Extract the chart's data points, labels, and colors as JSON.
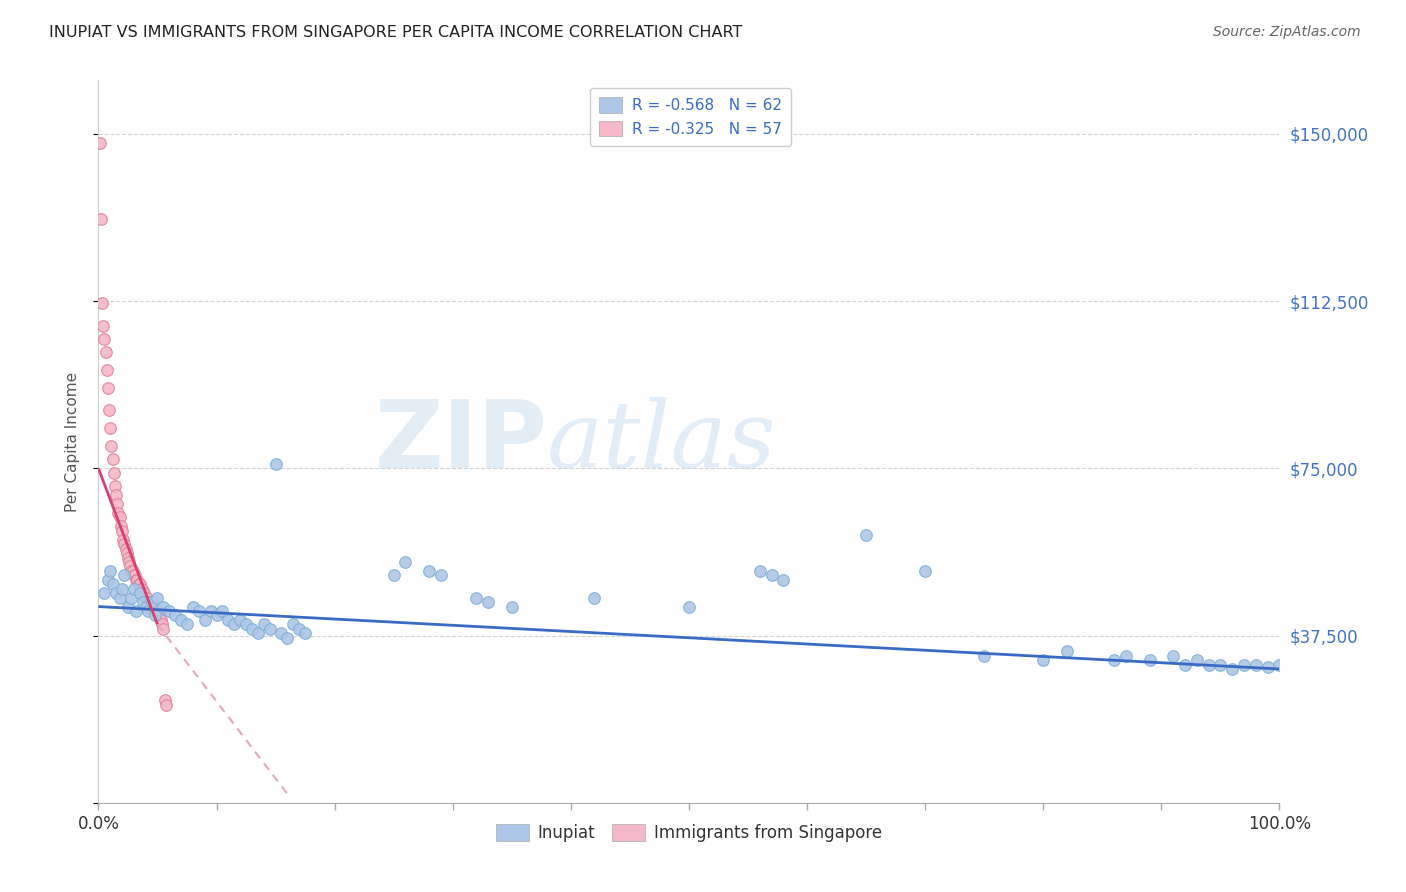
{
  "title": "INUPIAT VS IMMIGRANTS FROM SINGAPORE PER CAPITA INCOME CORRELATION CHART",
  "source": "Source: ZipAtlas.com",
  "ylabel": "Per Capita Income",
  "xlim": [
    0,
    1.0
  ],
  "ylim": [
    0,
    162000
  ],
  "yticks": [
    0,
    37500,
    75000,
    112500,
    150000
  ],
  "ytick_labels": [
    "",
    "$37,500",
    "$75,000",
    "$112,500",
    "$150,000"
  ],
  "xticks": [
    0.0,
    0.1,
    0.2,
    0.3,
    0.4,
    0.5,
    0.6,
    0.7,
    0.8,
    0.9,
    1.0
  ],
  "xtick_labels": [
    "0.0%",
    "",
    "",
    "",
    "",
    "",
    "",
    "",
    "",
    "",
    "100.0%"
  ],
  "inupiat_scatter": [
    [
      0.005,
      47000
    ],
    [
      0.008,
      50000
    ],
    [
      0.01,
      52000
    ],
    [
      0.012,
      49000
    ],
    [
      0.015,
      47000
    ],
    [
      0.018,
      46000
    ],
    [
      0.02,
      48000
    ],
    [
      0.022,
      51000
    ],
    [
      0.025,
      44000
    ],
    [
      0.028,
      46000
    ],
    [
      0.03,
      48000
    ],
    [
      0.032,
      43000
    ],
    [
      0.035,
      47000
    ],
    [
      0.038,
      45000
    ],
    [
      0.04,
      44000
    ],
    [
      0.042,
      43000
    ],
    [
      0.045,
      45000
    ],
    [
      0.048,
      42000
    ],
    [
      0.05,
      46000
    ],
    [
      0.055,
      44000
    ],
    [
      0.06,
      43000
    ],
    [
      0.065,
      42000
    ],
    [
      0.07,
      41000
    ],
    [
      0.075,
      40000
    ],
    [
      0.08,
      44000
    ],
    [
      0.085,
      43000
    ],
    [
      0.09,
      41000
    ],
    [
      0.095,
      43000
    ],
    [
      0.1,
      42000
    ],
    [
      0.105,
      43000
    ],
    [
      0.11,
      41000
    ],
    [
      0.115,
      40000
    ],
    [
      0.12,
      41000
    ],
    [
      0.125,
      40000
    ],
    [
      0.13,
      39000
    ],
    [
      0.135,
      38000
    ],
    [
      0.14,
      40000
    ],
    [
      0.145,
      39000
    ],
    [
      0.15,
      76000
    ],
    [
      0.155,
      38000
    ],
    [
      0.16,
      37000
    ],
    [
      0.165,
      40000
    ],
    [
      0.17,
      39000
    ],
    [
      0.175,
      38000
    ],
    [
      0.25,
      51000
    ],
    [
      0.26,
      54000
    ],
    [
      0.28,
      52000
    ],
    [
      0.29,
      51000
    ],
    [
      0.32,
      46000
    ],
    [
      0.33,
      45000
    ],
    [
      0.35,
      44000
    ],
    [
      0.42,
      46000
    ],
    [
      0.5,
      44000
    ],
    [
      0.56,
      52000
    ],
    [
      0.57,
      51000
    ],
    [
      0.58,
      50000
    ],
    [
      0.65,
      60000
    ],
    [
      0.7,
      52000
    ],
    [
      0.75,
      33000
    ],
    [
      0.8,
      32000
    ],
    [
      0.82,
      34000
    ],
    [
      0.86,
      32000
    ],
    [
      0.87,
      33000
    ],
    [
      0.89,
      32000
    ],
    [
      0.91,
      33000
    ],
    [
      0.92,
      31000
    ],
    [
      0.93,
      32000
    ],
    [
      0.94,
      31000
    ],
    [
      0.95,
      31000
    ],
    [
      0.96,
      30000
    ],
    [
      0.97,
      31000
    ],
    [
      0.98,
      31000
    ],
    [
      0.99,
      30500
    ],
    [
      1.0,
      31000
    ]
  ],
  "singapore_scatter": [
    [
      0.001,
      148000
    ],
    [
      0.002,
      131000
    ],
    [
      0.003,
      112000
    ],
    [
      0.004,
      107000
    ],
    [
      0.005,
      104000
    ],
    [
      0.006,
      101000
    ],
    [
      0.007,
      97000
    ],
    [
      0.008,
      93000
    ],
    [
      0.009,
      88000
    ],
    [
      0.01,
      84000
    ],
    [
      0.011,
      80000
    ],
    [
      0.012,
      77000
    ],
    [
      0.013,
      74000
    ],
    [
      0.014,
      71000
    ],
    [
      0.015,
      69000
    ],
    [
      0.016,
      67000
    ],
    [
      0.017,
      65000
    ],
    [
      0.018,
      64000
    ],
    [
      0.019,
      62000
    ],
    [
      0.02,
      61000
    ],
    [
      0.021,
      59000
    ],
    [
      0.022,
      58000
    ],
    [
      0.023,
      57000
    ],
    [
      0.024,
      56000
    ],
    [
      0.025,
      55000
    ],
    [
      0.026,
      54000
    ],
    [
      0.027,
      53000
    ],
    [
      0.028,
      52000
    ],
    [
      0.029,
      52000
    ],
    [
      0.03,
      51000
    ],
    [
      0.031,
      51000
    ],
    [
      0.032,
      50000
    ],
    [
      0.033,
      50000
    ],
    [
      0.034,
      49000
    ],
    [
      0.035,
      49000
    ],
    [
      0.036,
      48000
    ],
    [
      0.037,
      48000
    ],
    [
      0.038,
      47000
    ],
    [
      0.039,
      47000
    ],
    [
      0.04,
      46000
    ],
    [
      0.041,
      46000
    ],
    [
      0.042,
      45000
    ],
    [
      0.043,
      45000
    ],
    [
      0.044,
      45000
    ],
    [
      0.045,
      44000
    ],
    [
      0.046,
      44000
    ],
    [
      0.047,
      44000
    ],
    [
      0.048,
      43000
    ],
    [
      0.049,
      43000
    ],
    [
      0.05,
      43000
    ],
    [
      0.051,
      42000
    ],
    [
      0.052,
      42000
    ],
    [
      0.053,
      41000
    ],
    [
      0.054,
      40000
    ],
    [
      0.055,
      39000
    ],
    [
      0.056,
      23000
    ],
    [
      0.057,
      22000
    ]
  ],
  "inupiat_line": [
    [
      0.0,
      44000
    ],
    [
      1.0,
      30000
    ]
  ],
  "singapore_line_solid": [
    [
      0.0,
      75000
    ],
    [
      0.05,
      40000
    ]
  ],
  "singapore_line_dashed": [
    [
      0.05,
      40000
    ],
    [
      0.16,
      2000
    ]
  ],
  "watermark_zip": "ZIP",
  "watermark_atlas": "atlas",
  "scatter_size": 70,
  "inupiat_color": "#aec6e8",
  "inupiat_edge": "#7bafd4",
  "singapore_color": "#f4b8c8",
  "singapore_edge": "#e08098",
  "line_blue": "#3a6bc4",
  "line_pink": "#d84070",
  "line_dashed_pink": "#e0aabb",
  "grid_color": "#c8c8c8",
  "background_color": "#ffffff",
  "title_color": "#222222",
  "axis_label_color": "#555555",
  "right_tick_color": "#4472c4",
  "legend1_r_color": "#c0392b",
  "legend1_n_color": "#2980b9"
}
